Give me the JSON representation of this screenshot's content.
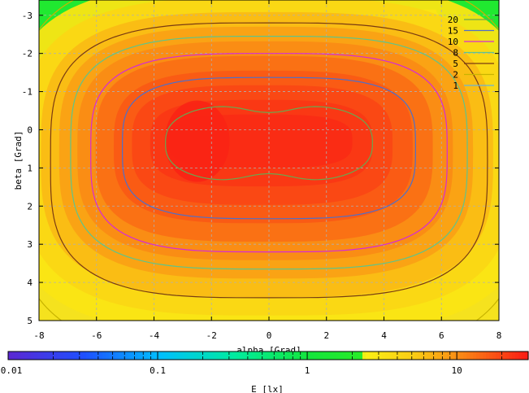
{
  "chart_data": {
    "type": "heatmap",
    "xlabel": "alpha [Grad]",
    "ylabel": "beta [Grad]",
    "xlim": [
      -8,
      8
    ],
    "ylim": [
      -3.4,
      5
    ],
    "y_axis_inverted": true,
    "grid": true,
    "x_ticks": [
      "-8",
      "-6",
      "-4",
      "-2",
      "0",
      "2",
      "4",
      "6",
      "8"
    ],
    "y_ticks": [
      "-3",
      "-2",
      "-1",
      "0",
      "1",
      "2",
      "3",
      "4",
      "5"
    ],
    "field": {
      "peak_value": 27,
      "peak_at": [
        -2.5,
        0.3
      ],
      "center": [
        0,
        0.4
      ]
    },
    "contours": [
      {
        "label": "20",
        "level": 20,
        "color": "#6aa84f",
        "half_width": 3.6,
        "half_height": 1.05,
        "center": [
          0,
          0.35
        ]
      },
      {
        "label": "15",
        "level": 15,
        "color": "#4f6fc9",
        "half_width": 5.1,
        "half_height": 1.85,
        "center": [
          0,
          0.48
        ]
      },
      {
        "label": "10",
        "level": 10,
        "color": "#d62ad6",
        "half_width": 6.2,
        "half_height": 2.6,
        "center": [
          0,
          0.6
        ]
      },
      {
        "label": "8",
        "level": 8,
        "color": "#5fc48a",
        "half_width": 6.9,
        "half_height": 3.05,
        "center": [
          0,
          0.6
        ]
      },
      {
        "label": "5",
        "level": 5,
        "color": "#7a3b12",
        "half_width": 7.6,
        "half_height": 3.6,
        "center": [
          0,
          0.8
        ]
      },
      {
        "label": "2",
        "level": 2,
        "color": "#c8b400",
        "half_width": 8.9,
        "half_height": 5.0,
        "center": [
          0,
          0.9
        ]
      },
      {
        "label": "1",
        "level": 1,
        "color": "#6ab4d6",
        "half_width": 9.6,
        "half_height": 5.7,
        "center": [
          0,
          1.0
        ]
      }
    ],
    "colorbar": {
      "label": "E [lx]",
      "scale": "log",
      "range": [
        0.01,
        30
      ],
      "ticks": [
        "0.01",
        "0.1",
        "1",
        "10"
      ],
      "tick_values": [
        0.01,
        0.1,
        1,
        10
      ]
    }
  }
}
